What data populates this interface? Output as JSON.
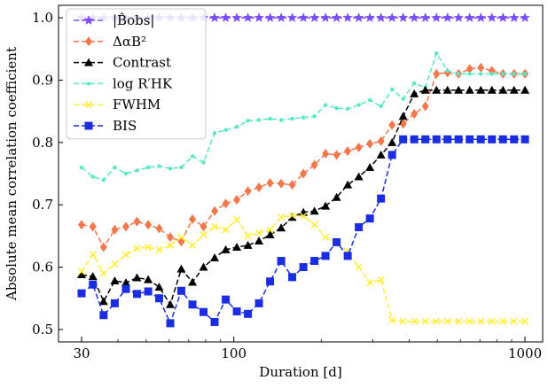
{
  "chart_data": {
    "type": "line",
    "xlabel": "Duration [d]",
    "ylabel": "Absolute mean correlation coefficient",
    "xscale": "log",
    "xlim": [
      25,
      1150
    ],
    "ylim": [
      0.48,
      1.02
    ],
    "xticks": [
      30,
      100,
      1000
    ],
    "xtick_labels": [
      "30",
      "100",
      "1000"
    ],
    "yticks": [
      0.5,
      0.6,
      0.7,
      0.8,
      0.9,
      1.0
    ],
    "ytick_labels": [
      "0.5",
      "0.6",
      "0.7",
      "0.8",
      "0.9",
      "1.0"
    ],
    "grid": false,
    "legend_position": "top-left",
    "x": [
      30,
      32.8,
      35.7,
      39,
      42.6,
      46.5,
      50.8,
      55.4,
      60.5,
      66,
      72.1,
      78.7,
      85.9,
      93.8,
      102.4,
      111.8,
      122,
      133.2,
      145.4,
      158.7,
      173.3,
      189.2,
      206.5,
      225.4,
      246.1,
      268.6,
      293.3,
      320.2,
      349.5,
      381.5,
      416.5,
      454.7,
      496.4,
      541.9,
      591.5,
      645.8,
      705,
      769.6,
      840.1,
      917.1,
      1000
    ],
    "series": [
      {
        "name": "|B̂obs|",
        "color": "#7b4dff",
        "marker": "star",
        "values": [
          1.0,
          1.0,
          1.0,
          1.0,
          1.0,
          1.0,
          1.0,
          1.0,
          1.0,
          1.0,
          1.0,
          1.0,
          1.0,
          1.0,
          1.0,
          1.0,
          1.0,
          1.0,
          1.0,
          1.0,
          1.0,
          1.0,
          1.0,
          1.0,
          1.0,
          1.0,
          1.0,
          1.0,
          1.0,
          1.0,
          1.0,
          1.0,
          1.0,
          1.0,
          1.0,
          1.0,
          1.0,
          1.0,
          1.0,
          1.0,
          1.0
        ]
      },
      {
        "name": "ΔαB²",
        "color": "#f4764b",
        "marker": "diamond",
        "values": [
          0.668,
          0.665,
          0.632,
          0.66,
          0.665,
          0.673,
          0.668,
          0.662,
          0.648,
          0.641,
          0.677,
          0.665,
          0.69,
          0.702,
          0.708,
          0.722,
          0.728,
          0.735,
          0.734,
          0.732,
          0.75,
          0.764,
          0.782,
          0.78,
          0.786,
          0.792,
          0.798,
          0.802,
          0.828,
          0.83,
          0.846,
          0.858,
          0.91,
          0.912,
          0.91,
          0.918,
          0.92,
          0.915,
          0.91,
          0.91,
          0.91
        ]
      },
      {
        "name": "log R′HK",
        "color": "#58e8c4",
        "marker": "circle",
        "values": [
          0.76,
          0.745,
          0.74,
          0.76,
          0.75,
          0.755,
          0.76,
          0.762,
          0.758,
          0.76,
          0.778,
          0.768,
          0.815,
          0.82,
          0.825,
          0.835,
          0.836,
          0.838,
          0.836,
          0.838,
          0.84,
          0.842,
          0.86,
          0.855,
          0.854,
          0.86,
          0.868,
          0.858,
          0.885,
          0.87,
          0.895,
          0.888,
          0.943,
          0.915,
          0.91,
          0.91,
          0.91,
          0.91,
          0.91,
          0.91,
          0.91
        ]
      },
      {
        "name": "Contrast",
        "color": "#000000",
        "marker": "triangle",
        "values": [
          0.588,
          0.585,
          0.545,
          0.578,
          0.575,
          0.583,
          0.58,
          0.568,
          0.54,
          0.597,
          0.576,
          0.6,
          0.615,
          0.628,
          0.632,
          0.635,
          0.642,
          0.652,
          0.663,
          0.68,
          0.688,
          0.69,
          0.698,
          0.712,
          0.732,
          0.745,
          0.76,
          0.78,
          0.8,
          0.842,
          0.878,
          0.884,
          0.884,
          0.884,
          0.884,
          0.884,
          0.884,
          0.884,
          0.884,
          0.884,
          0.884
        ]
      },
      {
        "name": "FWHM",
        "color": "#ffee33",
        "marker": "x",
        "values": [
          0.593,
          0.62,
          0.59,
          0.605,
          0.62,
          0.63,
          0.632,
          0.628,
          0.635,
          0.648,
          0.635,
          0.652,
          0.665,
          0.66,
          0.676,
          0.65,
          0.655,
          0.66,
          0.68,
          0.683,
          0.682,
          0.668,
          0.648,
          0.64,
          0.625,
          0.6,
          0.575,
          0.58,
          0.515,
          0.513,
          0.513,
          0.513,
          0.513,
          0.513,
          0.513,
          0.513,
          0.513,
          0.513,
          0.513,
          0.513,
          0.513
        ]
      },
      {
        "name": "BIS",
        "color": "#1a2de0",
        "marker": "square",
        "values": [
          0.558,
          0.572,
          0.523,
          0.542,
          0.565,
          0.557,
          0.561,
          0.55,
          0.51,
          0.562,
          0.54,
          0.528,
          0.512,
          0.548,
          0.529,
          0.525,
          0.542,
          0.577,
          0.61,
          0.584,
          0.6,
          0.61,
          0.618,
          0.64,
          0.618,
          0.664,
          0.678,
          0.71,
          0.78,
          0.805,
          0.805,
          0.805,
          0.805,
          0.805,
          0.805,
          0.805,
          0.805,
          0.805,
          0.805,
          0.805,
          0.805
        ]
      }
    ]
  }
}
